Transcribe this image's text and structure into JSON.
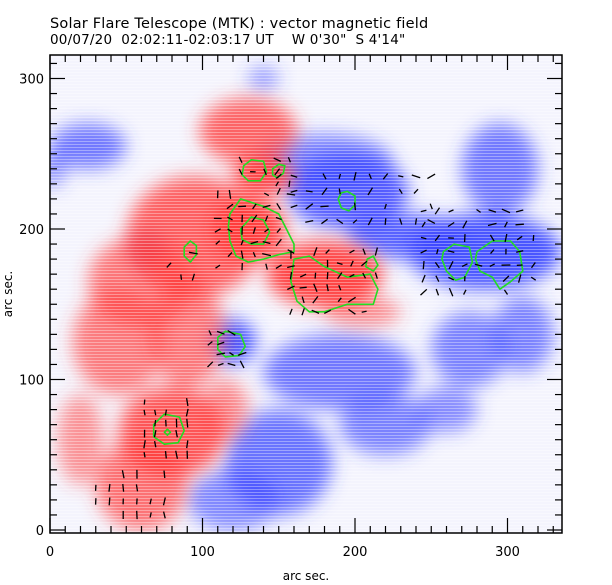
{
  "header": {
    "title": "Solar Flare Telescope (MTK) : vector magnetic field",
    "subtitle_date": "00/07/20",
    "subtitle_time": "02:02:11-02:03:17 UT",
    "subtitle_west": "W 0'30\"",
    "subtitle_south": "S 4'14\""
  },
  "chart_data": {
    "type": "heatmap",
    "title": "Solar Flare Telescope (MTK) : vector magnetic field",
    "subtitle": "00/07/20  02:02:11-02:03:17 UT    W 0'30\"  S 4'14\"",
    "xlabel": "arc sec.",
    "ylabel": "arc sec.",
    "xlim": [
      0,
      336
    ],
    "ylim": [
      0,
      316
    ],
    "xticks": [
      0,
      100,
      200,
      300
    ],
    "yticks": [
      0,
      100,
      200,
      300
    ],
    "x_minor_step": 10,
    "y_minor_step": 10,
    "colors": {
      "positive": "#ff3b3b",
      "negative": "#3b46ff",
      "contour": "#22dd22",
      "vector": "#000000",
      "frame": "#000000"
    },
    "positive_polarity": [
      {
        "x": 130,
        "y": 265,
        "rx": 32,
        "ry": 22,
        "strength": 0.7
      },
      {
        "x": 140,
        "y": 235,
        "rx": 20,
        "ry": 12,
        "strength": 1.0
      },
      {
        "x": 95,
        "y": 195,
        "rx": 45,
        "ry": 40,
        "strength": 0.75
      },
      {
        "x": 130,
        "y": 200,
        "rx": 25,
        "ry": 22,
        "strength": 1.0
      },
      {
        "x": 180,
        "y": 170,
        "rx": 38,
        "ry": 22,
        "strength": 1.0
      },
      {
        "x": 60,
        "y": 165,
        "rx": 35,
        "ry": 30,
        "strength": 0.55
      },
      {
        "x": 45,
        "y": 125,
        "rx": 30,
        "ry": 35,
        "strength": 0.5
      },
      {
        "x": 90,
        "y": 130,
        "rx": 25,
        "ry": 35,
        "strength": 0.55
      },
      {
        "x": 80,
        "y": 65,
        "rx": 35,
        "ry": 30,
        "strength": 0.85
      },
      {
        "x": 60,
        "y": 30,
        "rx": 30,
        "ry": 30,
        "strength": 0.6
      },
      {
        "x": 115,
        "y": 80,
        "rx": 15,
        "ry": 20,
        "strength": 0.4
      },
      {
        "x": 205,
        "y": 145,
        "rx": 25,
        "ry": 10,
        "strength": 0.35
      },
      {
        "x": 20,
        "y": 60,
        "rx": 15,
        "ry": 30,
        "strength": 0.3
      }
    ],
    "negative_polarity": [
      {
        "x": 25,
        "y": 255,
        "rx": 25,
        "ry": 15,
        "strength": 0.6
      },
      {
        "x": 195,
        "y": 225,
        "rx": 40,
        "ry": 25,
        "strength": 0.85
      },
      {
        "x": 180,
        "y": 245,
        "rx": 45,
        "ry": 18,
        "strength": 0.5
      },
      {
        "x": 235,
        "y": 195,
        "rx": 40,
        "ry": 15,
        "strength": 0.8
      },
      {
        "x": 285,
        "y": 185,
        "rx": 50,
        "ry": 25,
        "strength": 0.95
      },
      {
        "x": 295,
        "y": 240,
        "rx": 25,
        "ry": 30,
        "strength": 0.6
      },
      {
        "x": 120,
        "y": 125,
        "rx": 15,
        "ry": 15,
        "strength": 0.95
      },
      {
        "x": 190,
        "y": 105,
        "rx": 50,
        "ry": 25,
        "strength": 0.6
      },
      {
        "x": 275,
        "y": 120,
        "rx": 25,
        "ry": 25,
        "strength": 0.5
      },
      {
        "x": 310,
        "y": 130,
        "rx": 20,
        "ry": 25,
        "strength": 0.5
      },
      {
        "x": 150,
        "y": 45,
        "rx": 35,
        "ry": 35,
        "strength": 0.65
      },
      {
        "x": 220,
        "y": 70,
        "rx": 30,
        "ry": 20,
        "strength": 0.5
      },
      {
        "x": 260,
        "y": 80,
        "rx": 20,
        "ry": 15,
        "strength": 0.4
      },
      {
        "x": 120,
        "y": 20,
        "rx": 30,
        "ry": 20,
        "strength": 0.45
      },
      {
        "x": 65,
        "y": 185,
        "rx": 10,
        "ry": 12,
        "strength": 0.55
      },
      {
        "x": 140,
        "y": 300,
        "rx": 10,
        "ry": 8,
        "strength": 0.3
      },
      {
        "x": 2,
        "y": 240,
        "rx": 8,
        "ry": 12,
        "strength": 0.4
      }
    ],
    "contours": [
      {
        "name": "contour-north-a",
        "points": [
          [
            127,
            242
          ],
          [
            132,
            246
          ],
          [
            140,
            245
          ],
          [
            142,
            238
          ],
          [
            138,
            232
          ],
          [
            130,
            232
          ],
          [
            126,
            236
          ]
        ]
      },
      {
        "name": "contour-north-b",
        "points": [
          [
            146,
            240
          ],
          [
            150,
            243
          ],
          [
            154,
            242
          ],
          [
            153,
            237
          ],
          [
            149,
            234
          ],
          [
            146,
            236
          ]
        ]
      },
      {
        "name": "contour-central-outer",
        "points": [
          [
            118,
            210
          ],
          [
            125,
            220
          ],
          [
            140,
            215
          ],
          [
            150,
            210
          ],
          [
            155,
            200
          ],
          [
            160,
            190
          ],
          [
            160,
            185
          ],
          [
            150,
            183
          ],
          [
            140,
            180
          ],
          [
            130,
            178
          ],
          [
            122,
            182
          ],
          [
            118,
            192
          ],
          [
            117,
            202
          ]
        ]
      },
      {
        "name": "contour-central-inner",
        "points": [
          [
            125,
            200
          ],
          [
            132,
            208
          ],
          [
            140,
            206
          ],
          [
            144,
            198
          ],
          [
            140,
            190
          ],
          [
            132,
            190
          ],
          [
            126,
            193
          ]
        ]
      },
      {
        "name": "contour-west-blue",
        "points": [
          [
            195,
            225
          ],
          [
            200,
            222
          ],
          [
            200,
            216
          ],
          [
            196,
            212
          ],
          [
            191,
            214
          ],
          [
            189,
            220
          ],
          [
            191,
            224
          ]
        ]
      },
      {
        "name": "contour-east-red",
        "points": [
          [
            88,
            188
          ],
          [
            92,
            192
          ],
          [
            96,
            189
          ],
          [
            96,
            183
          ],
          [
            92,
            178
          ],
          [
            88,
            182
          ]
        ]
      },
      {
        "name": "contour-south-central",
        "points": [
          [
            160,
            180
          ],
          [
            170,
            182
          ],
          [
            180,
            175
          ],
          [
            195,
            168
          ],
          [
            210,
            170
          ],
          [
            215,
            160
          ],
          [
            212,
            150
          ],
          [
            195,
            150
          ],
          [
            180,
            145
          ],
          [
            170,
            145
          ],
          [
            162,
            152
          ],
          [
            158,
            165
          ]
        ]
      },
      {
        "name": "contour-small-blue",
        "points": [
          [
            208,
            180
          ],
          [
            212,
            182
          ],
          [
            215,
            176
          ],
          [
            212,
            172
          ],
          [
            207,
            175
          ]
        ]
      },
      {
        "name": "contour-east-spot-a",
        "points": [
          [
            258,
            185
          ],
          [
            265,
            190
          ],
          [
            275,
            188
          ],
          [
            277,
            178
          ],
          [
            272,
            168
          ],
          [
            266,
            166
          ],
          [
            260,
            172
          ],
          [
            257,
            180
          ]
        ]
      },
      {
        "name": "contour-east-spot-b",
        "points": [
          [
            280,
            185
          ],
          [
            290,
            192
          ],
          [
            302,
            192
          ],
          [
            308,
            185
          ],
          [
            310,
            172
          ],
          [
            302,
            165
          ],
          [
            295,
            160
          ],
          [
            290,
            168
          ],
          [
            282,
            172
          ],
          [
            279,
            180
          ]
        ]
      },
      {
        "name": "contour-blue-south",
        "points": [
          [
            110,
            128
          ],
          [
            115,
            132
          ],
          [
            125,
            130
          ],
          [
            128,
            122
          ],
          [
            124,
            116
          ],
          [
            115,
            115
          ],
          [
            110,
            120
          ]
        ]
      },
      {
        "name": "contour-red-south",
        "points": [
          [
            68,
            70
          ],
          [
            75,
            77
          ],
          [
            85,
            75
          ],
          [
            88,
            66
          ],
          [
            84,
            58
          ],
          [
            75,
            57
          ],
          [
            68,
            62
          ]
        ]
      },
      {
        "name": "contour-red-south-inner",
        "points": [
          [
            75,
            65
          ],
          [
            77,
            67
          ],
          [
            79,
            65
          ],
          [
            77,
            63
          ]
        ]
      }
    ],
    "vector_regions": [
      {
        "name": "central",
        "x_range": [
          110,
          160
        ],
        "y_range": [
          175,
          230
        ],
        "step": 8
      },
      {
        "name": "north",
        "x_range": [
          125,
          160
        ],
        "y_range": [
          230,
          248
        ],
        "step": 8
      },
      {
        "name": "north-west",
        "x_range": [
          150,
          255
        ],
        "y_range": [
          205,
          235
        ],
        "step": 10
      },
      {
        "name": "south-central",
        "x_range": [
          158,
          215
        ],
        "y_range": [
          145,
          185
        ],
        "step": 8
      },
      {
        "name": "east-blue",
        "x_range": [
          245,
          320
        ],
        "y_range": [
          158,
          215
        ],
        "step": 9
      },
      {
        "name": "east-red",
        "x_range": [
          78,
          100
        ],
        "y_range": [
          168,
          190
        ],
        "step": 8
      },
      {
        "name": "blue-south",
        "x_range": [
          105,
          130
        ],
        "y_range": [
          110,
          135
        ],
        "step": 7
      },
      {
        "name": "red-south",
        "x_range": [
          62,
          95
        ],
        "y_range": [
          50,
          85
        ],
        "step": 7
      },
      {
        "name": "red-south-tail",
        "x_range": [
          30,
          80
        ],
        "y_range": [
          10,
          45
        ],
        "step": 9
      }
    ]
  }
}
